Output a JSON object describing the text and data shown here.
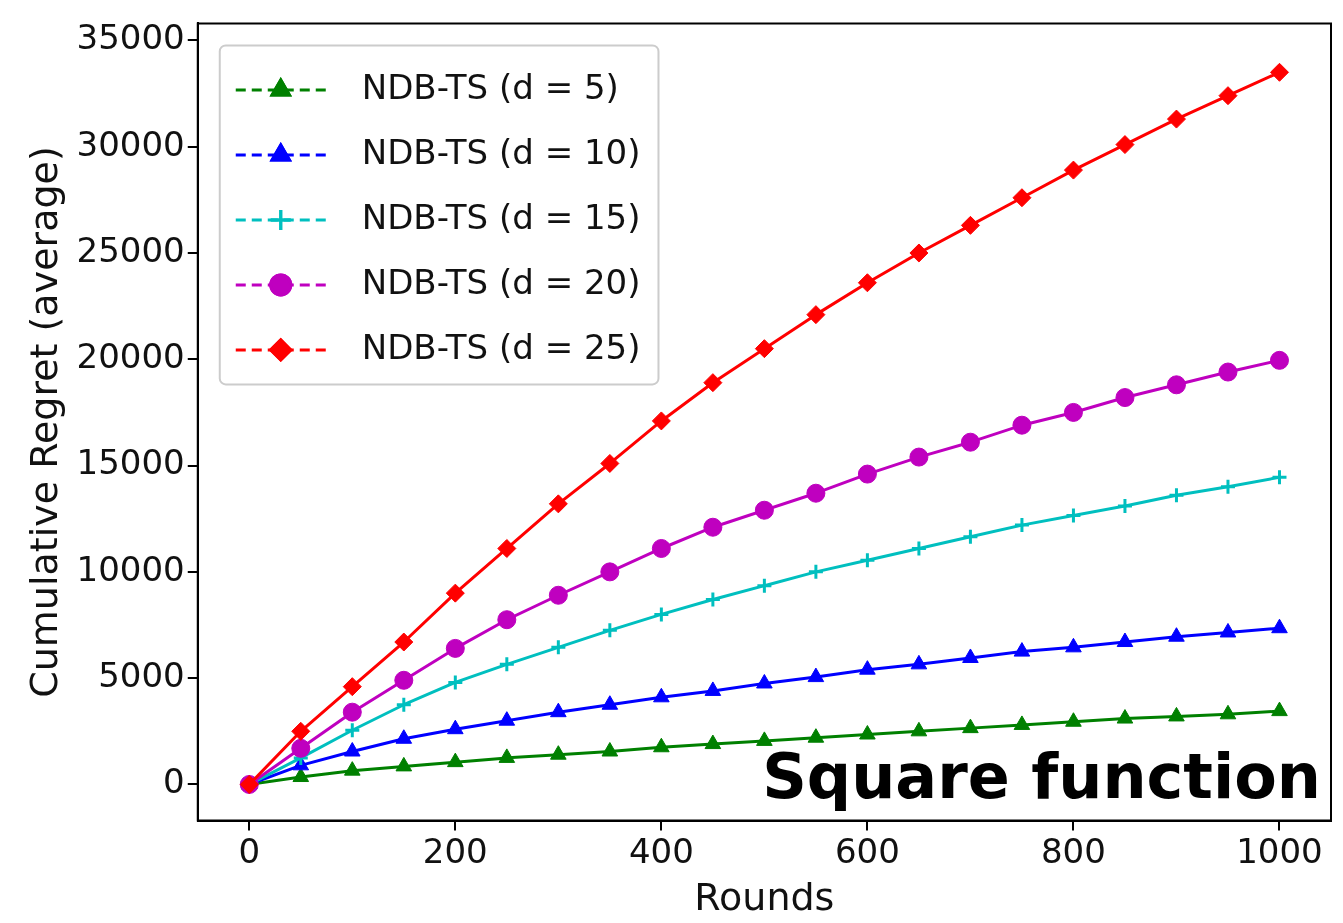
{
  "chart_data": {
    "type": "line",
    "xlabel": "Rounds",
    "ylabel": "Cumulative Regret (average)",
    "annotations": [
      "Square function"
    ],
    "x": [
      0,
      50,
      100,
      150,
      200,
      250,
      300,
      350,
      400,
      450,
      500,
      550,
      600,
      650,
      700,
      750,
      800,
      850,
      900,
      950,
      1000
    ],
    "xlim": [
      -50,
      1050
    ],
    "xticks": [
      0,
      200,
      400,
      600,
      800,
      1000
    ],
    "ylim": [
      -1700,
      35800
    ],
    "yticks": [
      0,
      5000,
      10000,
      15000,
      20000,
      25000,
      30000,
      35000
    ],
    "grid": false,
    "legend": "top left",
    "line_style": "solid",
    "series": [
      {
        "name": "NDB-TS (d = 5)",
        "color": "#008000",
        "marker": "triangle",
        "values": [
          0,
          350,
          650,
          850,
          1050,
          1250,
          1400,
          1550,
          1750,
          1900,
          2050,
          2200,
          2350,
          2500,
          2650,
          2800,
          2950,
          3100,
          3200,
          3300,
          3450
        ]
      },
      {
        "name": "NDB-TS (d = 10)",
        "color": "#0000ff",
        "marker": "triangle",
        "values": [
          0,
          900,
          1550,
          2150,
          2600,
          3000,
          3400,
          3750,
          4100,
          4400,
          4750,
          5050,
          5400,
          5650,
          5950,
          6250,
          6450,
          6700,
          6950,
          7150,
          7350
        ]
      },
      {
        "name": "NDB-TS (d = 15)",
        "color": "#00bfbf",
        "marker": "cross",
        "values": [
          0,
          1250,
          2550,
          3750,
          4800,
          5650,
          6450,
          7250,
          8000,
          8700,
          9350,
          10000,
          10550,
          11100,
          11650,
          12200,
          12650,
          13100,
          13600,
          14000,
          14450
        ]
      },
      {
        "name": "NDB-TS (d = 20)",
        "color": "#bf00bf",
        "marker": "circle",
        "values": [
          0,
          1700,
          3400,
          4900,
          6400,
          7750,
          8900,
          10000,
          11100,
          12100,
          12900,
          13700,
          14600,
          15400,
          16100,
          16900,
          17500,
          18200,
          18800,
          19400,
          19950
        ]
      },
      {
        "name": "NDB-TS (d = 25)",
        "color": "#ff0000",
        "marker": "diamond",
        "values": [
          0,
          2500,
          4600,
          6700,
          9000,
          11100,
          13200,
          15100,
          17100,
          18900,
          20500,
          22100,
          23600,
          25000,
          26300,
          27600,
          28900,
          30100,
          31300,
          32400,
          33500
        ]
      }
    ]
  }
}
